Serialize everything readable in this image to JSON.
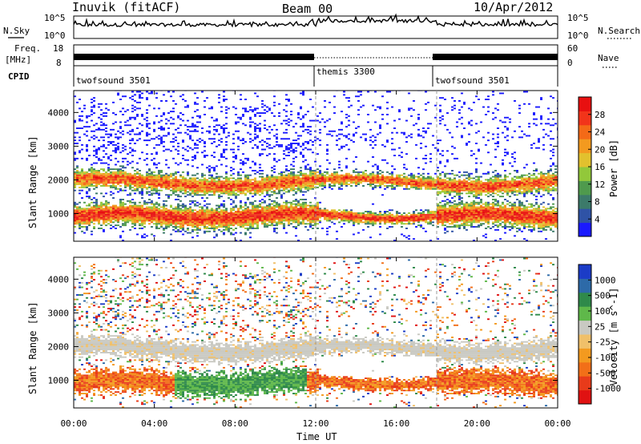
{
  "header": {
    "station": "Inuvik (fitACF)",
    "beam": "Beam 00",
    "date": "10/Apr/2012"
  },
  "labels": {
    "nsky": "N.Sky",
    "nsearch": "N.Search",
    "freq_line1": "Freq.",
    "freq_line2": "[MHz]",
    "nave": "Nave",
    "cpid": "CPID",
    "noise_tick_hi": "10^5",
    "noise_tick_lo": "10^0",
    "freq_tick_hi": "18",
    "freq_tick_lo": "8",
    "nave_tick_hi": "60",
    "nave_tick_lo": "0",
    "ylabel": "Slant Range [km]",
    "xlabel": "Time UT"
  },
  "cpid_segments": [
    {
      "name": "twofsound 3501",
      "start_hour": 0
    },
    {
      "name": "themis 3300",
      "start_hour": 12
    },
    {
      "name": "twofsound 3501",
      "start_hour": 18
    }
  ],
  "chart_data": [
    {
      "type": "heatmap",
      "name": "power",
      "x_range_hours": [
        0,
        24
      ],
      "x_ticks": [
        "00:00",
        "04:00",
        "08:00",
        "12:00",
        "16:00",
        "20:00",
        "00:00"
      ],
      "y_range_km": [
        180,
        4650
      ],
      "y_ticks": [
        1000,
        2000,
        3000,
        4000
      ],
      "colorbar": {
        "label": "Power [dB]",
        "ticks": [
          "4",
          "8",
          "12",
          "16",
          "20",
          "24",
          "28"
        ],
        "colors": [
          "#1a1aff",
          "#2f53a6",
          "#3c7a6a",
          "#4f9a4d",
          "#92c83a",
          "#e2c12e",
          "#f39a1f",
          "#f46a17",
          "#f2341a",
          "#e81010"
        ]
      },
      "bands": [
        {
          "center_km": 900,
          "half_width_km": 280,
          "level": "high"
        },
        {
          "center_km": 1900,
          "half_width_km": 250,
          "level": "medium"
        }
      ]
    },
    {
      "type": "heatmap",
      "name": "velocity",
      "x_range_hours": [
        0,
        24
      ],
      "x_ticks": [
        "00:00",
        "04:00",
        "08:00",
        "12:00",
        "16:00",
        "20:00",
        "00:00"
      ],
      "y_range_km": [
        180,
        4650
      ],
      "y_ticks": [
        1000,
        2000,
        3000,
        4000
      ],
      "colorbar": {
        "label": "Velocity [m s^-1]",
        "ticks": [
          "1000",
          "500",
          "100",
          "25",
          "-25",
          "-100",
          "-500",
          "-1000"
        ],
        "colors": [
          "#1b3cc7",
          "#2d6aa8",
          "#2f8a4a",
          "#5fb84a",
          "#c9c9c2",
          "#f0c06a",
          "#f39a1f",
          "#f26f18",
          "#e83b1a",
          "#e01212"
        ]
      }
    }
  ]
}
